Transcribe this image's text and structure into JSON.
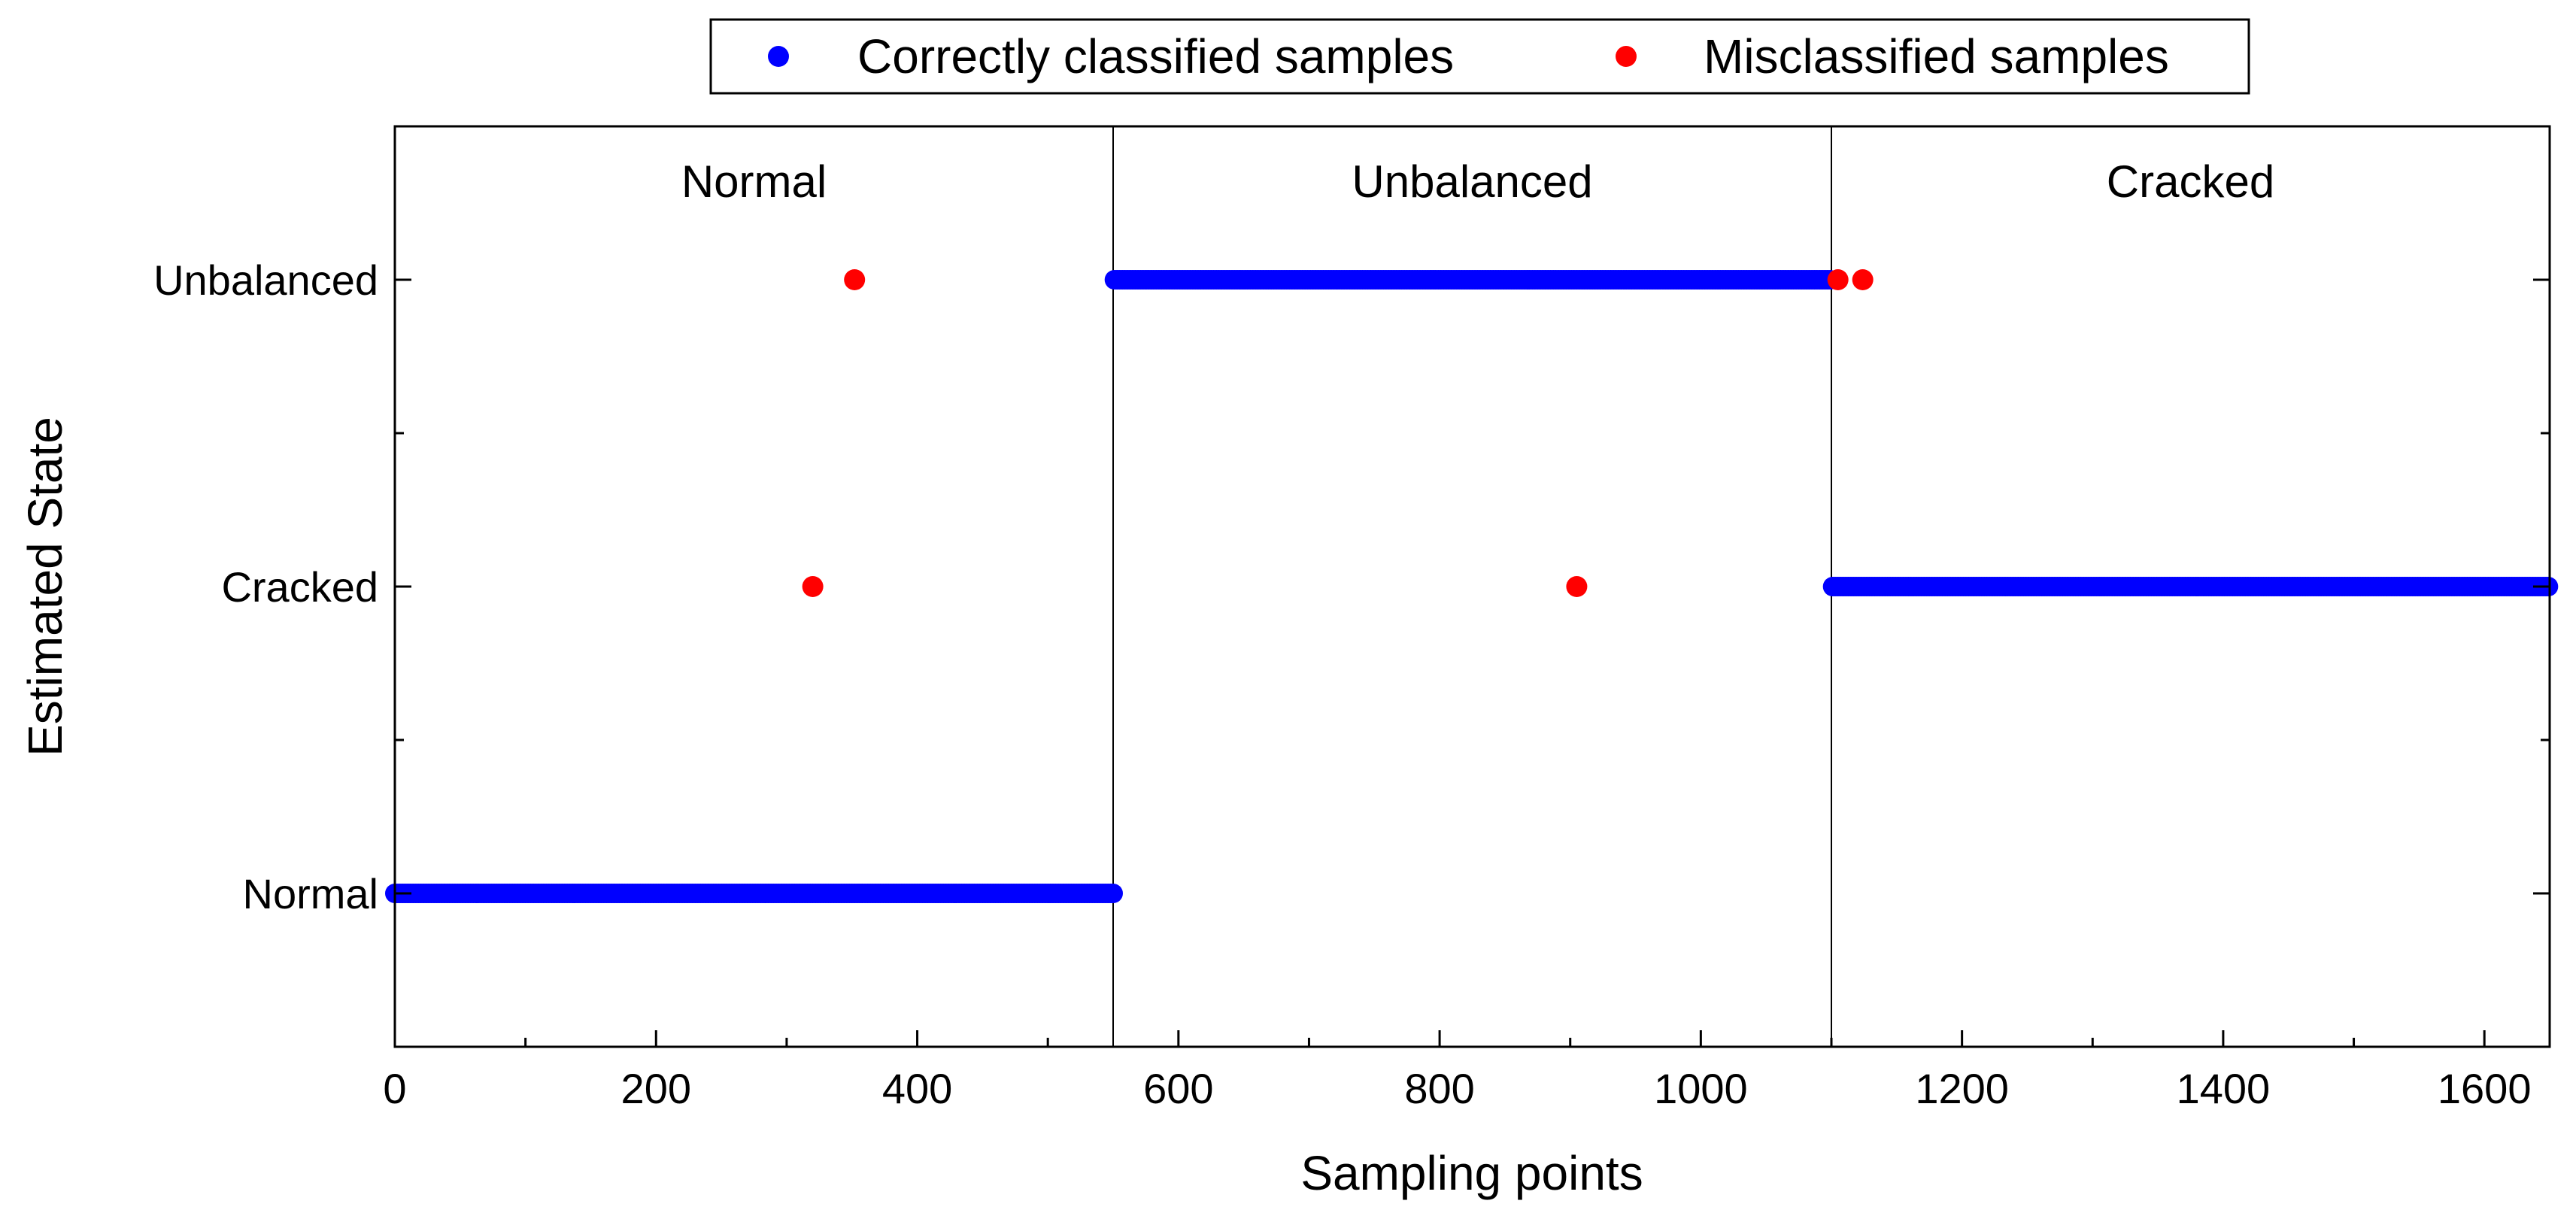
{
  "chart_data": {
    "type": "scatter",
    "title": "",
    "xlabel": "Sampling points",
    "ylabel": "Estimated State",
    "xlim": [
      0,
      1650
    ],
    "ylim": [
      -0.5,
      2.5
    ],
    "xticks": [
      0,
      200,
      400,
      600,
      800,
      1000,
      1200,
      1400,
      1600
    ],
    "xtick_labels": [
      "0",
      "200",
      "400",
      "600",
      "800",
      "1000",
      "1200",
      "1400",
      "1600"
    ],
    "categories": [
      "Normal",
      "Cracked",
      "Unbalanced"
    ],
    "region_boundaries": [
      550,
      1100
    ],
    "regions": [
      {
        "label": "Normal",
        "x_center": 275
      },
      {
        "label": "Unbalanced",
        "x_center": 825
      },
      {
        "label": "Cracked",
        "x_center": 1375
      }
    ],
    "legend": [
      {
        "name": "Correctly classified samples",
        "color": "#0000ff"
      },
      {
        "name": "Misclassified samples",
        "color": "#ff0000"
      }
    ],
    "series": [
      {
        "name": "Correctly classified samples",
        "color": "#0000ff",
        "runs": [
          {
            "x_start": 0,
            "x_end": 550,
            "state": "Normal"
          },
          {
            "x_start": 551,
            "x_end": 1100,
            "state": "Unbalanced"
          },
          {
            "x_start": 1101,
            "x_end": 1650,
            "state": "Cracked"
          }
        ]
      },
      {
        "name": "Misclassified samples",
        "color": "#ff0000",
        "points": [
          {
            "x": 320,
            "state": "Cracked"
          },
          {
            "x": 352,
            "state": "Unbalanced"
          },
          {
            "x": 905,
            "state": "Cracked"
          },
          {
            "x": 1105,
            "state": "Unbalanced"
          },
          {
            "x": 1124,
            "state": "Unbalanced"
          }
        ]
      }
    ]
  }
}
